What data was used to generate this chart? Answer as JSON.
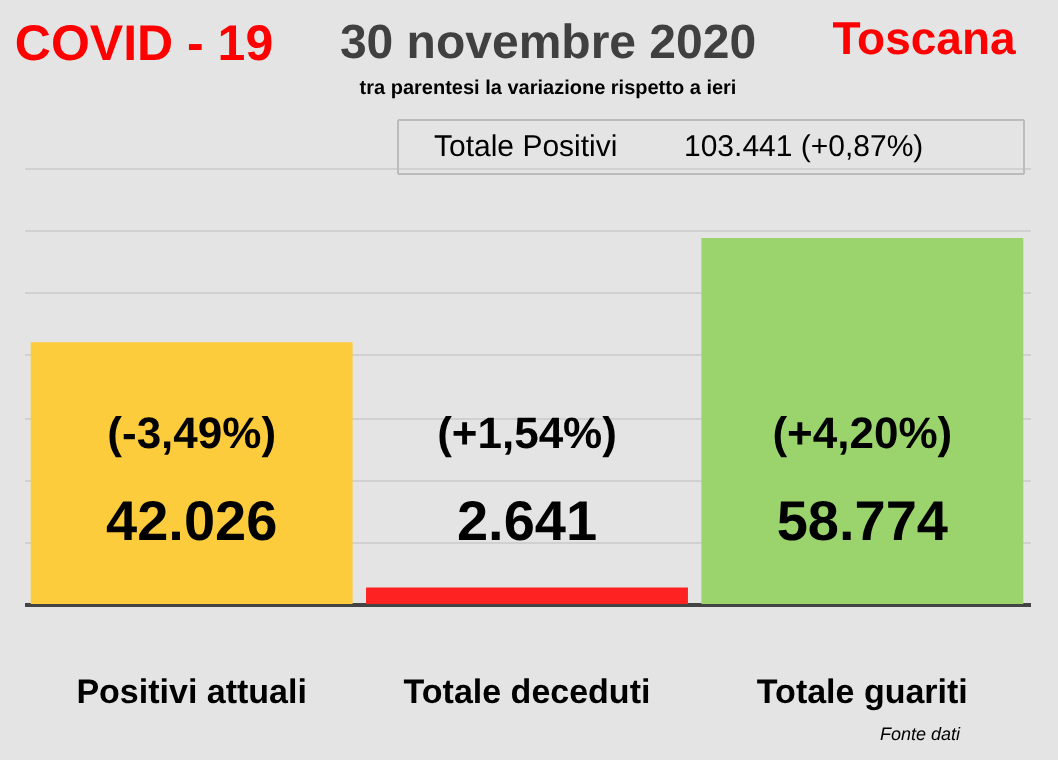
{
  "chart_data": {
    "type": "bar",
    "title": "30 novembre 2020",
    "subtitle": "tra parentesi la variazione rispetto a ieri",
    "categories": [
      "Positivi attuali",
      "Totale deceduti",
      "Totale guariti"
    ],
    "values": [
      42026,
      2641,
      58774
    ],
    "colors": [
      "#fccc3c",
      "#fe2222",
      "#9bd46c"
    ],
    "value_labels": [
      "42.026",
      "2.641",
      "58.774"
    ],
    "ylim": [
      0,
      70000
    ],
    "yticks": [
      {
        "value": 0,
        "label": null
      },
      {
        "value": 10000,
        "label": null
      },
      {
        "value": 20000,
        "label": null
      },
      {
        "value": 30000,
        "label": null
      },
      {
        "value": 40000,
        "label": null
      },
      {
        "value": 50000,
        "label": null
      },
      {
        "value": 60000,
        "label": null
      },
      {
        "value": 70000,
        "label": null
      }
    ],
    "grid": "y",
    "tick_labels": "x",
    "annotations": [
      "(-3,49%)",
      "(+1,54%)",
      "(+4,20%)",
      "COVID - 19",
      "Toscana",
      "Totale Positivi",
      "103.441 (+0,87%)",
      "Fonte dati"
    ]
  }
}
